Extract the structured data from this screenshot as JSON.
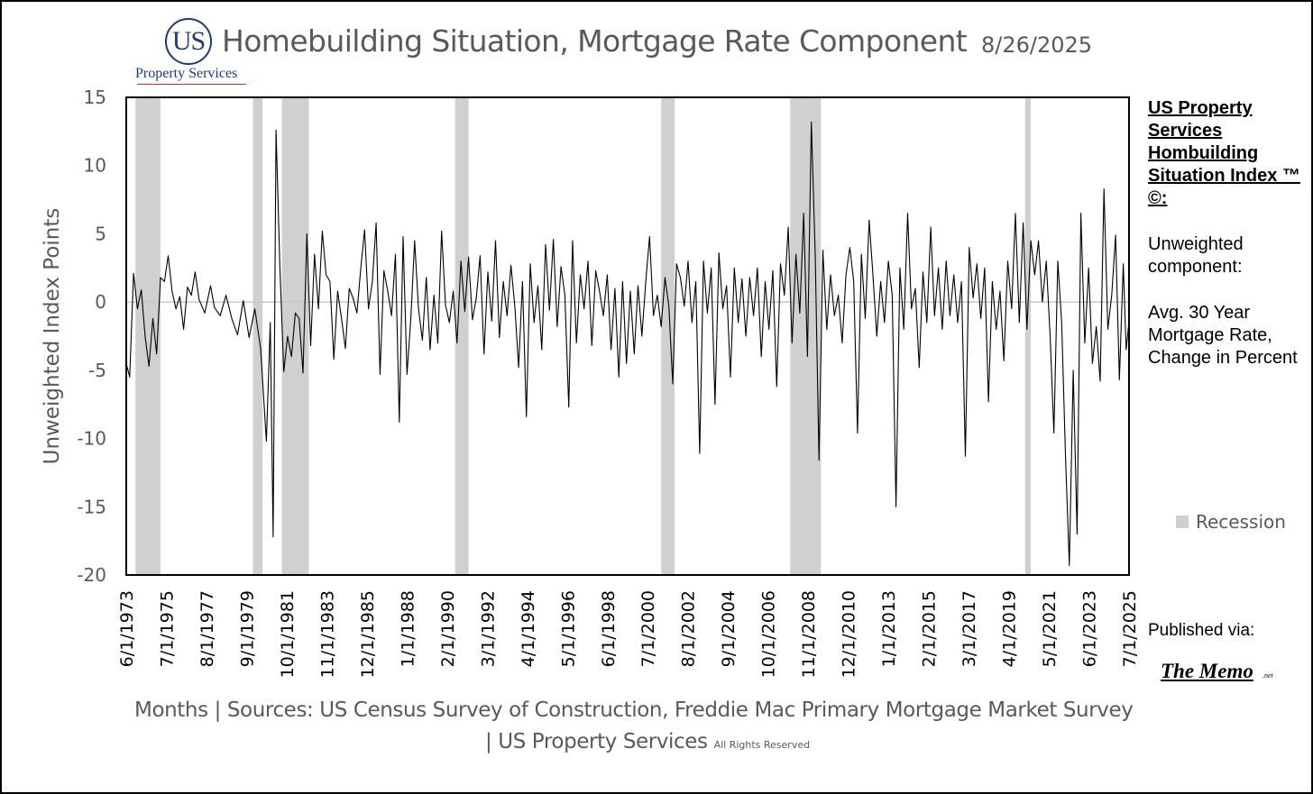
{
  "header": {
    "logo_mark": "US",
    "logo_name": "Property Services",
    "title": "Homebuilding Situation, Mortgage Rate Component",
    "date": "8/26/2025"
  },
  "side_panel": {
    "heading": "US Property Services Hombuilding Situation Index ™ ©:",
    "subheading": "Unweighted component:",
    "component": "Avg. 30 Year Mortgage Rate, Change in Percent",
    "published_label": "Published via:",
    "publisher": "The Memo",
    "publisher_suffix": ".net"
  },
  "legend": {
    "recession_label": "Recession",
    "recession_color": "#d0d0d0"
  },
  "footer": {
    "line1": "Months | Sources: US Census Survey of Construction, Freddie Mac Primary Mortgage Market Survey",
    "line2": "| US Property Services",
    "rights": "All Rights Reserved"
  },
  "chart_data": {
    "type": "line",
    "title": "Homebuilding Situation, Mortgage Rate Component",
    "xlabel": "Months",
    "ylabel": "Unweighted Index Points",
    "ylim": [
      -20,
      15
    ],
    "yticks": [
      15,
      10,
      5,
      0,
      -5,
      -10,
      -15,
      -20
    ],
    "x_start": "6/1/1973",
    "x_end": "7/1/2025",
    "xtick_labels": [
      "6/1/1973",
      "7/1/1975",
      "8/1/1977",
      "9/1/1979",
      "10/1/1981",
      "11/1/1983",
      "12/1/1985",
      "1/1/1988",
      "2/1/1990",
      "3/1/1992",
      "4/1/1994",
      "5/1/1996",
      "6/1/1998",
      "7/1/2000",
      "8/1/2002",
      "9/1/2004",
      "10/1/2006",
      "11/1/2008",
      "12/1/2010",
      "1/1/2013",
      "2/1/2015",
      "3/1/2017",
      "4/1/2019",
      "5/1/2021",
      "6/1/2023",
      "7/1/2025"
    ],
    "line_color": "#000000",
    "recessions": [
      [
        1973.9,
        1975.2
      ],
      [
        1980.0,
        1980.5
      ],
      [
        1981.5,
        1982.9
      ],
      [
        1990.5,
        1991.2
      ],
      [
        2001.2,
        2001.9
      ],
      [
        2007.9,
        2009.5
      ],
      [
        2020.1,
        2020.4
      ]
    ],
    "series": [
      {
        "name": "Avg. 30 Year Mortgage Rate, Change in Percent",
        "points": [
          [
            1973.42,
            -4.5
          ],
          [
            1973.6,
            -5.5
          ],
          [
            1973.8,
            2.1
          ],
          [
            1974.0,
            -0.5
          ],
          [
            1974.2,
            0.9
          ],
          [
            1974.4,
            -2.5
          ],
          [
            1974.6,
            -4.7
          ],
          [
            1974.8,
            -1.2
          ],
          [
            1975.0,
            -3.8
          ],
          [
            1975.2,
            1.8
          ],
          [
            1975.4,
            1.5
          ],
          [
            1975.6,
            3.4
          ],
          [
            1975.8,
            0.8
          ],
          [
            1976.0,
            -0.5
          ],
          [
            1976.2,
            0.4
          ],
          [
            1976.4,
            -2.0
          ],
          [
            1976.6,
            1.1
          ],
          [
            1976.8,
            0.5
          ],
          [
            1977.0,
            2.2
          ],
          [
            1977.2,
            0.2
          ],
          [
            1977.5,
            -0.8
          ],
          [
            1977.8,
            1.2
          ],
          [
            1978.0,
            -0.4
          ],
          [
            1978.3,
            -1.0
          ],
          [
            1978.6,
            0.5
          ],
          [
            1978.9,
            -1.2
          ],
          [
            1979.2,
            -2.4
          ],
          [
            1979.5,
            0.1
          ],
          [
            1979.8,
            -2.6
          ],
          [
            1980.1,
            -0.5
          ],
          [
            1980.4,
            -3.4
          ],
          [
            1980.7,
            -10.2
          ],
          [
            1980.9,
            -1.5
          ],
          [
            1981.05,
            -17.2
          ],
          [
            1981.2,
            12.6
          ],
          [
            1981.4,
            2.5
          ],
          [
            1981.6,
            -5.1
          ],
          [
            1981.8,
            -2.5
          ],
          [
            1982.0,
            -4.0
          ],
          [
            1982.2,
            -0.8
          ],
          [
            1982.4,
            -1.2
          ],
          [
            1982.6,
            -5.2
          ],
          [
            1982.8,
            5.0
          ],
          [
            1983.0,
            -3.2
          ],
          [
            1983.2,
            3.5
          ],
          [
            1983.4,
            -0.5
          ],
          [
            1983.6,
            5.2
          ],
          [
            1983.8,
            2.0
          ],
          [
            1984.0,
            1.5
          ],
          [
            1984.2,
            -4.2
          ],
          [
            1984.4,
            0.8
          ],
          [
            1984.6,
            -1.2
          ],
          [
            1984.8,
            -3.4
          ],
          [
            1985.0,
            1.0
          ],
          [
            1985.2,
            0.3
          ],
          [
            1985.4,
            -0.8
          ],
          [
            1985.6,
            2.5
          ],
          [
            1985.8,
            5.3
          ],
          [
            1986.0,
            -0.5
          ],
          [
            1986.2,
            1.5
          ],
          [
            1986.4,
            5.8
          ],
          [
            1986.6,
            -5.3
          ],
          [
            1986.8,
            2.3
          ],
          [
            1987.0,
            0.8
          ],
          [
            1987.2,
            -1.0
          ],
          [
            1987.4,
            3.5
          ],
          [
            1987.6,
            -8.8
          ],
          [
            1987.8,
            4.8
          ],
          [
            1988.0,
            -5.3
          ],
          [
            1988.2,
            -1.2
          ],
          [
            1988.4,
            4.5
          ],
          [
            1988.6,
            -0.5
          ],
          [
            1988.8,
            -2.8
          ],
          [
            1989.0,
            1.8
          ],
          [
            1989.2,
            -3.5
          ],
          [
            1989.4,
            0.5
          ],
          [
            1989.6,
            -3.0
          ],
          [
            1989.8,
            5.2
          ],
          [
            1990.0,
            -0.2
          ],
          [
            1990.2,
            -1.5
          ],
          [
            1990.4,
            0.8
          ],
          [
            1990.6,
            -3.0
          ],
          [
            1990.8,
            3.0
          ],
          [
            1991.0,
            -0.7
          ],
          [
            1991.2,
            3.3
          ],
          [
            1991.4,
            -1.3
          ],
          [
            1991.6,
            0.3
          ],
          [
            1991.8,
            3.4
          ],
          [
            1992.0,
            -3.8
          ],
          [
            1992.2,
            2.2
          ],
          [
            1992.4,
            -1.4
          ],
          [
            1992.6,
            4.5
          ],
          [
            1992.8,
            -2.6
          ],
          [
            1993.0,
            1.5
          ],
          [
            1993.2,
            -1.0
          ],
          [
            1993.4,
            2.7
          ],
          [
            1993.6,
            -0.3
          ],
          [
            1993.8,
            -4.8
          ],
          [
            1994.0,
            1.5
          ],
          [
            1994.2,
            -8.4
          ],
          [
            1994.4,
            2.8
          ],
          [
            1994.6,
            -1.5
          ],
          [
            1994.8,
            1.2
          ],
          [
            1995.0,
            -3.5
          ],
          [
            1995.2,
            4.2
          ],
          [
            1995.4,
            -0.6
          ],
          [
            1995.6,
            4.6
          ],
          [
            1995.8,
            -1.8
          ],
          [
            1996.0,
            2.6
          ],
          [
            1996.2,
            0.5
          ],
          [
            1996.4,
            -7.7
          ],
          [
            1996.6,
            4.5
          ],
          [
            1996.8,
            -3.0
          ],
          [
            1997.0,
            2.0
          ],
          [
            1997.2,
            -0.5
          ],
          [
            1997.4,
            3.0
          ],
          [
            1997.6,
            -3.2
          ],
          [
            1997.8,
            2.3
          ],
          [
            1998.0,
            0.8
          ],
          [
            1998.2,
            -1.0
          ],
          [
            1998.4,
            2.0
          ],
          [
            1998.6,
            -3.5
          ],
          [
            1998.8,
            1.0
          ],
          [
            1999.0,
            -5.5
          ],
          [
            1999.2,
            1.5
          ],
          [
            1999.4,
            -4.5
          ],
          [
            1999.6,
            0.8
          ],
          [
            1999.8,
            -3.8
          ],
          [
            2000.0,
            1.2
          ],
          [
            2000.2,
            -2.5
          ],
          [
            2000.4,
            1.5
          ],
          [
            2000.6,
            4.8
          ],
          [
            2000.8,
            -1.0
          ],
          [
            2001.0,
            0.5
          ],
          [
            2001.2,
            -1.8
          ],
          [
            2001.4,
            1.8
          ],
          [
            2001.6,
            -0.3
          ],
          [
            2001.8,
            -6.0
          ],
          [
            2002.0,
            2.8
          ],
          [
            2002.2,
            1.8
          ],
          [
            2002.4,
            -0.3
          ],
          [
            2002.6,
            3.0
          ],
          [
            2002.8,
            -1.5
          ],
          [
            2003.0,
            1.5
          ],
          [
            2003.2,
            -11.1
          ],
          [
            2003.4,
            3.0
          ],
          [
            2003.6,
            -0.8
          ],
          [
            2003.8,
            2.5
          ],
          [
            2004.0,
            -7.5
          ],
          [
            2004.2,
            3.6
          ],
          [
            2004.4,
            -0.5
          ],
          [
            2004.6,
            1.2
          ],
          [
            2004.8,
            -5.5
          ],
          [
            2005.0,
            2.5
          ],
          [
            2005.2,
            -1.5
          ],
          [
            2005.4,
            1.7
          ],
          [
            2005.6,
            -2.5
          ],
          [
            2005.8,
            1.8
          ],
          [
            2006.0,
            -1.0
          ],
          [
            2006.2,
            2.5
          ],
          [
            2006.4,
            -4.0
          ],
          [
            2006.6,
            1.5
          ],
          [
            2006.8,
            -2.0
          ],
          [
            2007.0,
            2.3
          ],
          [
            2007.2,
            -6.2
          ],
          [
            2007.4,
            2.8
          ],
          [
            2007.6,
            0.5
          ],
          [
            2007.8,
            5.5
          ],
          [
            2008.0,
            -3.0
          ],
          [
            2008.2,
            3.5
          ],
          [
            2008.4,
            -0.8
          ],
          [
            2008.6,
            6.5
          ],
          [
            2008.8,
            -4.0
          ],
          [
            2009.0,
            13.2
          ],
          [
            2009.2,
            3.5
          ],
          [
            2009.4,
            -11.6
          ],
          [
            2009.6,
            3.8
          ],
          [
            2009.8,
            -2.0
          ],
          [
            2010.0,
            2.0
          ],
          [
            2010.2,
            -1.0
          ],
          [
            2010.4,
            0.5
          ],
          [
            2010.6,
            -3.0
          ],
          [
            2010.8,
            2.0
          ],
          [
            2011.0,
            4.0
          ],
          [
            2011.2,
            1.5
          ],
          [
            2011.4,
            -9.6
          ],
          [
            2011.6,
            3.5
          ],
          [
            2011.8,
            -1.2
          ],
          [
            2012.0,
            6.0
          ],
          [
            2012.2,
            2.0
          ],
          [
            2012.4,
            -2.5
          ],
          [
            2012.6,
            1.5
          ],
          [
            2012.8,
            -1.5
          ],
          [
            2013.0,
            3.0
          ],
          [
            2013.2,
            0.5
          ],
          [
            2013.4,
            -15.0
          ],
          [
            2013.6,
            2.5
          ],
          [
            2013.8,
            -2.0
          ],
          [
            2014.0,
            6.5
          ],
          [
            2014.2,
            -0.5
          ],
          [
            2014.4,
            1.0
          ],
          [
            2014.6,
            -4.8
          ],
          [
            2014.8,
            2.2
          ],
          [
            2015.0,
            -1.5
          ],
          [
            2015.2,
            5.5
          ],
          [
            2015.4,
            -1.0
          ],
          [
            2015.6,
            2.5
          ],
          [
            2015.8,
            -2.0
          ],
          [
            2016.0,
            3.0
          ],
          [
            2016.2,
            -1.0
          ],
          [
            2016.4,
            2.0
          ],
          [
            2016.6,
            -1.5
          ],
          [
            2016.8,
            1.5
          ],
          [
            2017.0,
            -11.3
          ],
          [
            2017.2,
            4.0
          ],
          [
            2017.4,
            0.3
          ],
          [
            2017.6,
            2.8
          ],
          [
            2017.8,
            -1.2
          ],
          [
            2018.0,
            2.5
          ],
          [
            2018.2,
            -7.3
          ],
          [
            2018.4,
            1.5
          ],
          [
            2018.6,
            -2.0
          ],
          [
            2018.8,
            0.8
          ],
          [
            2019.0,
            -4.3
          ],
          [
            2019.2,
            3.0
          ],
          [
            2019.4,
            -0.5
          ],
          [
            2019.6,
            6.5
          ],
          [
            2019.8,
            -1.5
          ],
          [
            2020.0,
            5.8
          ],
          [
            2020.2,
            -2.0
          ],
          [
            2020.4,
            4.5
          ],
          [
            2020.6,
            2.0
          ],
          [
            2020.8,
            4.5
          ],
          [
            2021.0,
            0.0
          ],
          [
            2021.2,
            3.0
          ],
          [
            2021.4,
            -2.5
          ],
          [
            2021.6,
            -9.6
          ],
          [
            2021.8,
            3.0
          ],
          [
            2022.0,
            -1.5
          ],
          [
            2022.2,
            -11.2
          ],
          [
            2022.4,
            -19.3
          ],
          [
            2022.6,
            -5.0
          ],
          [
            2022.8,
            -17.0
          ],
          [
            2023.0,
            6.5
          ],
          [
            2023.2,
            -3.0
          ],
          [
            2023.4,
            2.5
          ],
          [
            2023.6,
            -4.5
          ],
          [
            2023.8,
            -1.8
          ],
          [
            2024.0,
            -5.8
          ],
          [
            2024.2,
            8.3
          ],
          [
            2024.4,
            -2.0
          ],
          [
            2024.6,
            0.5
          ],
          [
            2024.8,
            4.9
          ],
          [
            2025.0,
            -5.7
          ],
          [
            2025.2,
            2.8
          ],
          [
            2025.35,
            -3.5
          ],
          [
            2025.5,
            -1.4
          ]
        ]
      }
    ]
  }
}
